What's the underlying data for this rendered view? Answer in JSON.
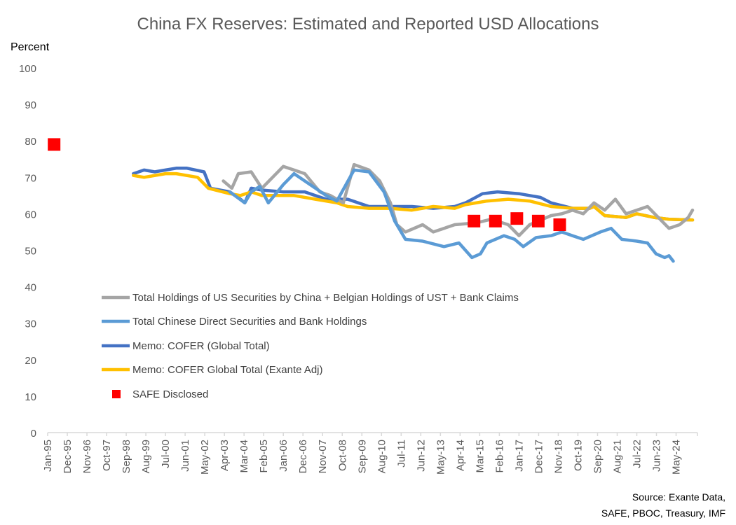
{
  "chart_data": {
    "type": "line",
    "title": "China FX Reserves: Estimated and Reported USD Allocations",
    "ylabel": "Percent",
    "xlabel": "",
    "ylim": [
      0,
      100
    ],
    "xlim": [
      1995.0,
      2025.33
    ],
    "yticks": [
      "0",
      "10",
      "20",
      "30",
      "40",
      "50",
      "60",
      "70",
      "80",
      "90",
      "100"
    ],
    "xtick_labels": [
      "Jan-95",
      "Dec-95",
      "Nov-96",
      "Oct-97",
      "Sep-98",
      "Aug-99",
      "Jul-00",
      "Jun-01",
      "May-02",
      "Apr-03",
      "Mar-04",
      "Feb-05",
      "Jan-06",
      "Dec-06",
      "Nov-07",
      "Oct-08",
      "Sep-09",
      "Aug-10",
      "Jul-11",
      "Jun-12",
      "May-13",
      "Apr-14",
      "Mar-15",
      "Feb-16",
      "Jan-17",
      "Dec-17",
      "Nov-18",
      "Oct-19",
      "Sep-20",
      "Aug-21",
      "Jul-22",
      "Jun-23",
      "May-24"
    ],
    "grid": false,
    "legend_position": "lower-left",
    "source": [
      "Source: Exante Data,",
      "SAFE, PBOC, Treasury, IMF"
    ],
    "series": [
      {
        "name": "Total Holdings of US Securities by China + Belgian Holdings of UST + Bank Claims",
        "color": "#A5A5A5",
        "style": "line",
        "x": [
          2003.2,
          2003.6,
          2003.9,
          2004.5,
          2005.0,
          2005.5,
          2006.0,
          2006.5,
          2007.0,
          2007.7,
          2008.2,
          2008.8,
          2009.3,
          2010.0,
          2010.5,
          2011.0,
          2011.3,
          2011.7,
          2012.5,
          2013.0,
          2014.0,
          2015.0,
          2015.7,
          2016.5,
          2017.0,
          2017.5,
          2018.5,
          2019.0,
          2019.5,
          2020.0,
          2020.5,
          2021.0,
          2021.5,
          2022.0,
          2022.5,
          2023.0,
          2023.5,
          2024.0,
          2024.5,
          2024.9,
          2025.1
        ],
        "y": [
          69,
          67,
          71,
          71.5,
          67,
          70,
          73,
          72,
          71,
          66,
          65,
          63,
          73.5,
          72,
          69,
          63,
          57,
          55,
          57,
          55,
          57,
          57.5,
          58.5,
          57,
          54,
          57,
          59.5,
          60,
          61,
          60,
          63,
          61,
          64,
          60,
          61,
          62,
          59,
          56,
          57,
          59,
          61
        ]
      },
      {
        "name": "Total Chinese Direct Securities and Bank Holdings",
        "color": "#5B9BD5",
        "style": "line",
        "x": [
          2003.5,
          2004.2,
          2004.5,
          2004.9,
          2005.3,
          2006.0,
          2006.5,
          2007.0,
          2008.0,
          2008.5,
          2009.3,
          2010.0,
          2010.7,
          2011.2,
          2011.7,
          2012.5,
          2013.5,
          2014.2,
          2014.8,
          2015.2,
          2015.5,
          2016.3,
          2016.8,
          2017.2,
          2017.8,
          2018.5,
          2019.0,
          2019.5,
          2020.0,
          2020.8,
          2021.3,
          2021.8,
          2022.5,
          2023.0,
          2023.4,
          2023.8,
          2024.0,
          2024.2
        ],
        "y": [
          66,
          63,
          66,
          67.5,
          63,
          68,
          71,
          69,
          65,
          63.5,
          72,
          71.5,
          66,
          58,
          53,
          52.5,
          51,
          52,
          48,
          49,
          52,
          54,
          53,
          51,
          53.5,
          54,
          55,
          54,
          53,
          55,
          56,
          53,
          52.5,
          52,
          49,
          48,
          48.5,
          47
        ]
      },
      {
        "name": "Memo: COFER (Global Total)",
        "color": "#4472C4",
        "style": "line",
        "x": [
          1999.0,
          1999.5,
          2000.0,
          2000.5,
          2001.0,
          2001.5,
          2002.3,
          2002.6,
          2003.5,
          2004.0,
          2004.2,
          2004.5,
          2005.0,
          2006.0,
          2007.0,
          2008.0,
          2009.0,
          2010.0,
          2011.0,
          2012.0,
          2013.0,
          2014.0,
          2014.5,
          2015.3,
          2016.0,
          2017.0,
          2018.0,
          2018.5,
          2019.5,
          2020.3,
          2020.5,
          2021.0,
          2022.0,
          2022.5,
          2023.3,
          2024.0,
          2025.1
        ],
        "y": [
          71,
          72,
          71.5,
          72,
          72.5,
          72.5,
          71.5,
          67,
          66,
          64,
          63,
          67,
          66.5,
          66,
          66,
          64,
          64,
          62,
          62,
          62,
          61.5,
          62,
          63,
          65.5,
          66,
          65.5,
          64.5,
          63,
          61.5,
          61.5,
          62,
          59.5,
          59,
          60,
          59,
          58.5,
          58.3
        ]
      },
      {
        "name": "Memo: COFER Global Total (Exante Adj)",
        "color": "#FFC000",
        "style": "line",
        "x": [
          1999.0,
          1999.5,
          2000.5,
          2001.0,
          2002.0,
          2002.5,
          2003.5,
          2004.0,
          2004.5,
          2005.0,
          2006.5,
          2007.5,
          2008.5,
          2009.0,
          2010.0,
          2011.0,
          2012.0,
          2013.0,
          2014.0,
          2014.5,
          2015.5,
          2016.5,
          2017.5,
          2018.5,
          2019.5,
          2020.3,
          2020.5,
          2021.0,
          2022.0,
          2022.5,
          2023.3,
          2024.0,
          2025.1
        ],
        "y": [
          70.5,
          70,
          71,
          71,
          70,
          67,
          65.5,
          65,
          66,
          65,
          65,
          64,
          63,
          62,
          61.5,
          61.5,
          61,
          62,
          61.5,
          62.5,
          63.5,
          64,
          63.5,
          62,
          61.5,
          61.5,
          62,
          59.5,
          59,
          60,
          59,
          58.5,
          58.3
        ]
      },
      {
        "name": "SAFE Disclosed",
        "color": "#FF0000",
        "style": "marker",
        "x": [
          1995.3,
          2014.9,
          2015.9,
          2016.9,
          2017.9,
          2018.9
        ],
        "y": [
          79,
          58,
          58,
          58.7,
          58,
          57
        ]
      }
    ]
  }
}
